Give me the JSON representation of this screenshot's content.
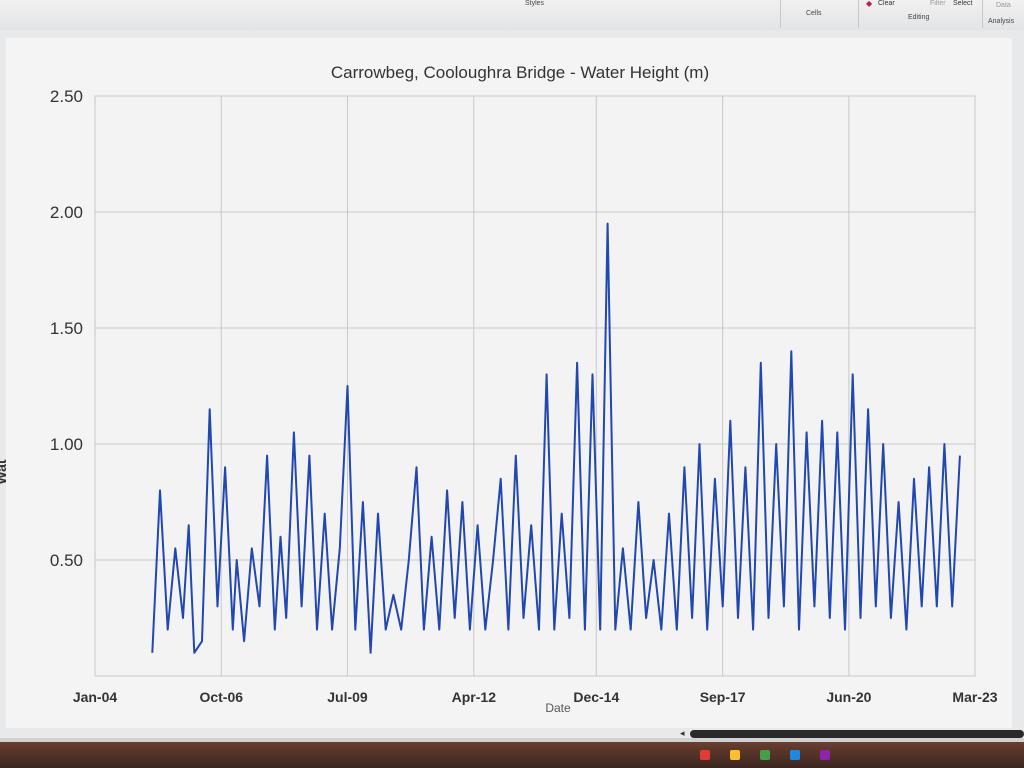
{
  "ribbon": {
    "styles_label": "Styles",
    "cells_label": "Cells",
    "editing_label": "Editing",
    "analysis_label": "Analysis",
    "clear_label": "Clear",
    "filter_label": "Filter",
    "select_label": "Select",
    "data_label": "Data"
  },
  "colors": {
    "series": "#2148b0",
    "grid": "#c8c8c8",
    "plot_bg": "#f3f3f3"
  },
  "chart_data": {
    "type": "line",
    "title": "Carrowbeg, Cooloughra Bridge - Water Height (m)",
    "xlabel": "Date",
    "ylabel": "Wat",
    "xlim": [
      "2004-01-01",
      "2023-03-01"
    ],
    "ylim": [
      0,
      2.5
    ],
    "x_ticks": [
      "Jan-04",
      "Oct-06",
      "Jul-09",
      "Apr-12",
      "Dec-14",
      "Sep-17",
      "Jun-20",
      "Mar-23"
    ],
    "y_ticks": [
      "2.50",
      "2.00",
      "1.50",
      "1.00",
      "0.50"
    ],
    "grid": true,
    "legend": "none",
    "series": [
      {
        "x": [
          "2005-04-01",
          "2005-06-01",
          "2005-08-01",
          "2005-10-01",
          "2005-12-01",
          "2006-01-15",
          "2006-03-01",
          "2006-05-01",
          "2006-07-01",
          "2006-09-01",
          "2006-11-01",
          "2007-01-01",
          "2007-02-01",
          "2007-04-01",
          "2007-06-01",
          "2007-08-01",
          "2007-10-01",
          "2007-12-01",
          "2008-01-15",
          "2008-03-01",
          "2008-05-01",
          "2008-07-01",
          "2008-09-01",
          "2008-11-01",
          "2009-01-01",
          "2009-03-01",
          "2009-05-01",
          "2009-07-01",
          "2009-09-01",
          "2009-11-01",
          "2010-01-01",
          "2010-03-01",
          "2010-05-01",
          "2010-07-01",
          "2010-09-01",
          "2010-11-01",
          "2011-01-01",
          "2011-03-01",
          "2011-05-01",
          "2011-07-01",
          "2011-09-01",
          "2011-11-01",
          "2012-01-01",
          "2012-03-01",
          "2012-05-01",
          "2012-07-01",
          "2012-09-01",
          "2012-11-01",
          "2013-01-01",
          "2013-03-01",
          "2013-05-01",
          "2013-07-01",
          "2013-09-01",
          "2013-11-01",
          "2014-01-01",
          "2014-03-01",
          "2014-05-01",
          "2014-07-01",
          "2014-09-01",
          "2014-11-01",
          "2015-01-01",
          "2015-03-01",
          "2015-05-01",
          "2015-07-01",
          "2015-09-01",
          "2015-11-01",
          "2016-01-01",
          "2016-03-01",
          "2016-05-01",
          "2016-07-01",
          "2016-09-01",
          "2016-11-01",
          "2017-01-01",
          "2017-03-01",
          "2017-05-01",
          "2017-07-01",
          "2017-09-01",
          "2017-11-01",
          "2018-01-01",
          "2018-03-01",
          "2018-05-01",
          "2018-07-01",
          "2018-09-01",
          "2018-11-01",
          "2019-01-01",
          "2019-03-01",
          "2019-05-01",
          "2019-07-01",
          "2019-09-01",
          "2019-11-01",
          "2020-01-01",
          "2020-03-01",
          "2020-05-01",
          "2020-07-01",
          "2020-09-01",
          "2020-11-01",
          "2021-01-01",
          "2021-03-01",
          "2021-05-01",
          "2021-07-01",
          "2021-09-01",
          "2021-11-01",
          "2022-01-01",
          "2022-03-01",
          "2022-05-01",
          "2022-07-01",
          "2022-09-01",
          "2022-11-01"
        ],
        "values": [
          0.1,
          0.8,
          0.2,
          0.55,
          0.25,
          0.65,
          0.1,
          0.15,
          1.15,
          0.3,
          0.9,
          0.2,
          0.5,
          0.15,
          0.55,
          0.3,
          0.95,
          0.2,
          0.6,
          0.25,
          1.05,
          0.3,
          0.95,
          0.2,
          0.7,
          0.2,
          0.55,
          1.25,
          0.2,
          0.75,
          0.1,
          0.7,
          0.2,
          0.35,
          0.2,
          0.5,
          0.9,
          0.2,
          0.6,
          0.2,
          0.8,
          0.25,
          0.75,
          0.2,
          0.65,
          0.2,
          0.5,
          0.85,
          0.2,
          0.95,
          0.25,
          0.65,
          0.2,
          1.3,
          0.2,
          0.7,
          0.25,
          1.35,
          0.2,
          1.3,
          0.2,
          1.95,
          0.2,
          0.55,
          0.2,
          0.75,
          0.25,
          0.5,
          0.2,
          0.7,
          0.2,
          0.9,
          0.25,
          1.0,
          0.2,
          0.85,
          0.3,
          1.1,
          0.25,
          0.9,
          0.2,
          1.35,
          0.25,
          1.0,
          0.3,
          1.4,
          0.2,
          1.05,
          0.3,
          1.1,
          0.25,
          1.05,
          0.2,
          1.3,
          0.25,
          1.15,
          0.3,
          1.0,
          0.25,
          0.75,
          0.2,
          0.85,
          0.3,
          0.9,
          0.3,
          1.0,
          0.3,
          0.95
        ],
        "note_gap": false
      }
    ]
  }
}
